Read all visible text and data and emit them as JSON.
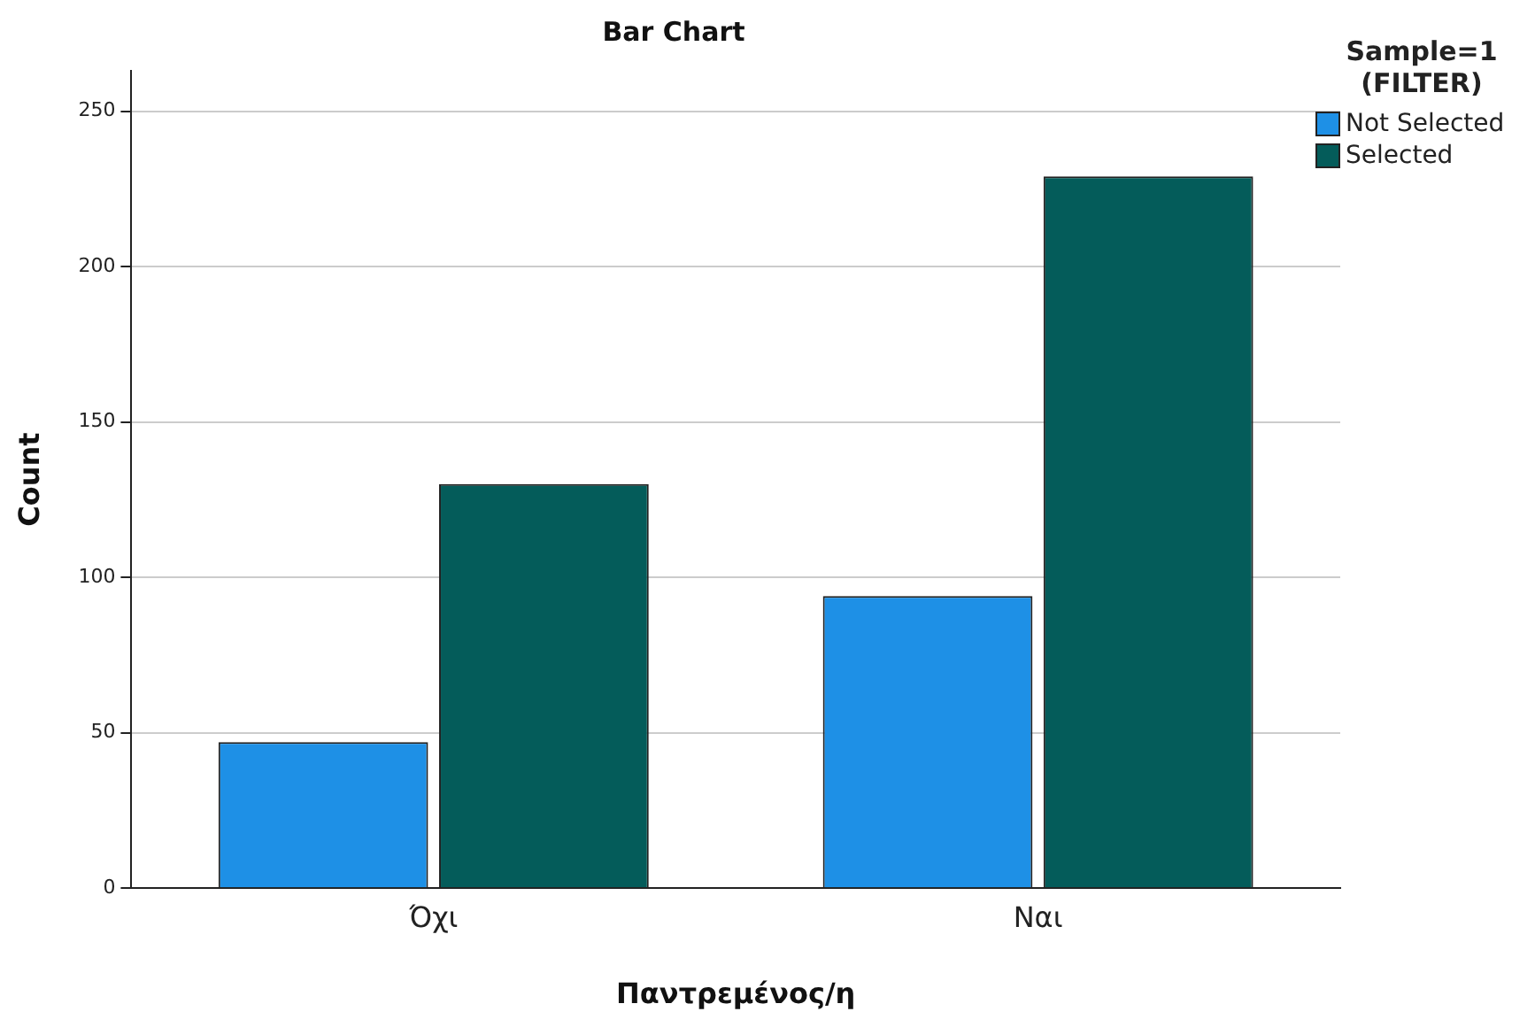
{
  "chart_data": {
    "type": "bar",
    "title": "Bar Chart",
    "xlabel": "Παντρεμένος/η",
    "ylabel": "Count",
    "legend_title": "Sample=1 (FILTER)",
    "categories": [
      "Όχι",
      "Ναι"
    ],
    "series": [
      {
        "name": "Not Selected",
        "color": "#1e90e6",
        "values": [
          47,
          94
        ]
      },
      {
        "name": "Selected",
        "color": "#045c5a",
        "values": [
          130,
          229
        ]
      }
    ],
    "ylim": [
      0,
      263
    ],
    "yticks": [
      0,
      50,
      100,
      150,
      200,
      250
    ],
    "grid": "y",
    "legend": "top right"
  }
}
